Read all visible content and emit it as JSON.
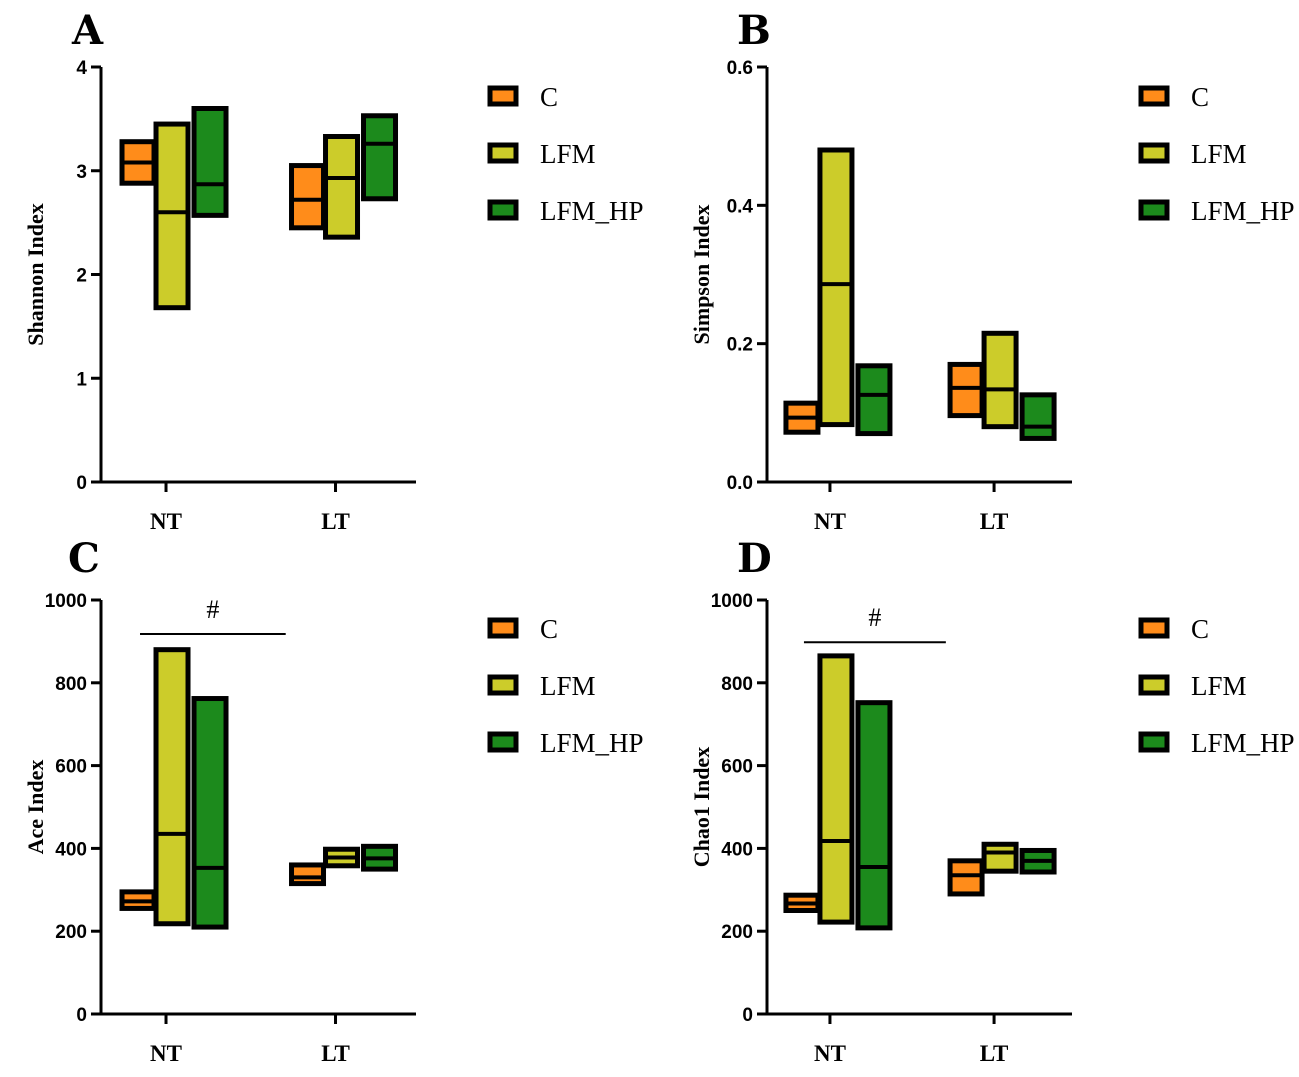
{
  "colors": {
    "C": "#ff8c1a",
    "LFM": "#cccc2a",
    "LFM_HP": "#1c8a1c",
    "outline": "#000000"
  },
  "legend": [
    "C",
    "LFM",
    "LFM_HP"
  ],
  "chart_data": [
    {
      "panel": "A",
      "type": "floating-bar",
      "ylabel": "Shannon Index",
      "ylim": [
        0,
        4
      ],
      "yticks": [
        "0",
        "1",
        "2",
        "3",
        "4"
      ],
      "categories": [
        "NT",
        "LT"
      ],
      "series": [
        {
          "name": "C",
          "min": [
            2.88,
            2.45
          ],
          "max": [
            3.28,
            3.05
          ],
          "mean": [
            3.08,
            2.72
          ]
        },
        {
          "name": "LFM",
          "min": [
            1.68,
            2.36
          ],
          "max": [
            3.45,
            3.33
          ],
          "mean": [
            2.6,
            2.93
          ]
        },
        {
          "name": "LFM_HP",
          "min": [
            2.57,
            2.73
          ],
          "max": [
            3.6,
            3.53
          ],
          "mean": [
            2.87,
            3.26
          ]
        }
      ],
      "annotation": null
    },
    {
      "panel": "B",
      "type": "floating-bar",
      "ylabel": "Simpson Index",
      "ylim": [
        0,
        0.6
      ],
      "yticks": [
        "0.0",
        "0.2",
        "0.4",
        "0.6"
      ],
      "categories": [
        "NT",
        "LT"
      ],
      "series": [
        {
          "name": "C",
          "min": [
            0.072,
            0.096
          ],
          "max": [
            0.114,
            0.17
          ],
          "mean": [
            0.093,
            0.136
          ]
        },
        {
          "name": "LFM",
          "min": [
            0.083,
            0.08
          ],
          "max": [
            0.48,
            0.215
          ],
          "mean": [
            0.286,
            0.134
          ]
        },
        {
          "name": "LFM_HP",
          "min": [
            0.07,
            0.063
          ],
          "max": [
            0.168,
            0.126
          ],
          "mean": [
            0.126,
            0.08
          ]
        }
      ],
      "annotation": null
    },
    {
      "panel": "C",
      "type": "floating-bar",
      "ylabel": "Ace Index",
      "ylim": [
        0,
        1000
      ],
      "yticks": [
        "0",
        "200",
        "400",
        "600",
        "800",
        "1000"
      ],
      "categories": [
        "NT",
        "LT"
      ],
      "series": [
        {
          "name": "C",
          "min": [
            255,
            315
          ],
          "max": [
            295,
            360
          ],
          "mean": [
            272,
            330
          ]
        },
        {
          "name": "LFM",
          "min": [
            218,
            358
          ],
          "max": [
            880,
            398
          ],
          "mean": [
            435,
            378
          ]
        },
        {
          "name": "LFM_HP",
          "min": [
            210,
            350
          ],
          "max": [
            762,
            405
          ],
          "mean": [
            353,
            376
          ]
        }
      ],
      "annotation": {
        "text": "#",
        "from": 0,
        "to": 1,
        "y": 918
      }
    },
    {
      "panel": "D",
      "type": "floating-bar",
      "ylabel": "Chao1 Index",
      "ylim": [
        0,
        1000
      ],
      "yticks": [
        "0",
        "200",
        "400",
        "600",
        "800",
        "1000"
      ],
      "categories": [
        "NT",
        "LT"
      ],
      "series": [
        {
          "name": "C",
          "min": [
            250,
            290
          ],
          "max": [
            287,
            370
          ],
          "mean": [
            267,
            335
          ]
        },
        {
          "name": "LFM",
          "min": [
            222,
            345
          ],
          "max": [
            865,
            410
          ],
          "mean": [
            418,
            390
          ]
        },
        {
          "name": "LFM_HP",
          "min": [
            208,
            343
          ],
          "max": [
            752,
            395
          ],
          "mean": [
            355,
            370
          ]
        }
      ],
      "annotation": {
        "text": "#",
        "from": 0,
        "to": 1,
        "y": 898
      }
    }
  ]
}
